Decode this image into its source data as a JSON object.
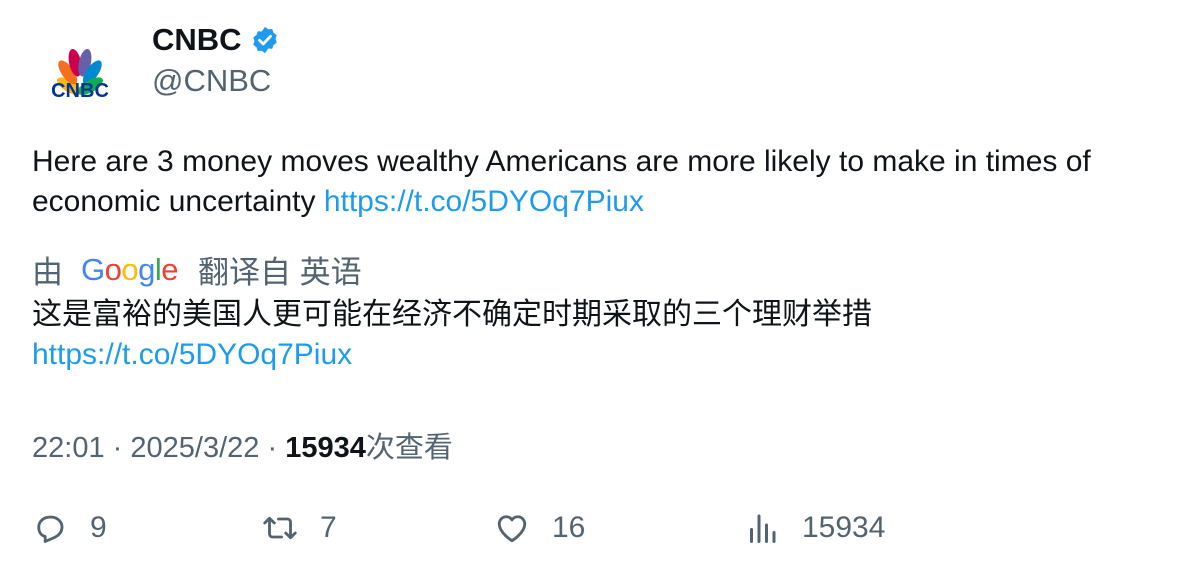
{
  "author": {
    "logo_text": "CNBC",
    "name": "CNBC",
    "handle": "@CNBC",
    "verified": true
  },
  "tweet": {
    "text": "Here are 3 money moves wealthy Americans are more likely to make in times of economic uncertainty",
    "link": "https://t.co/5DYOq7Piux"
  },
  "translation": {
    "prefix": "由",
    "provider": "Google",
    "suffix": "翻译自 英语",
    "text": "这是富裕的美国人更可能在经济不确定时期采取的三个理财举措",
    "link": "https://t.co/5DYOq7Piux"
  },
  "meta": {
    "time": "22:01",
    "separator": "·",
    "date": "2025/3/22",
    "views_count": "15934",
    "views_label": "次查看"
  },
  "actions": {
    "replies": "9",
    "retweets": "7",
    "likes": "16",
    "views": "15934"
  },
  "colors": {
    "link": "#1d9bf0",
    "secondary_text": "#536471",
    "verified": "#1d9bf0"
  }
}
